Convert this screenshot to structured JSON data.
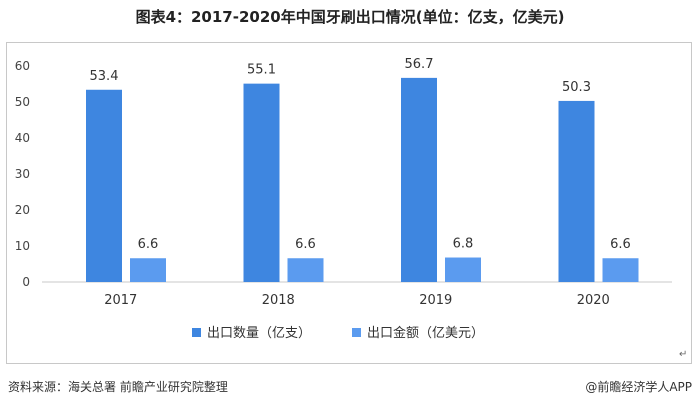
{
  "title": "图表4：2017-2020年中国牙刷出口情况(单位：亿支，亿美元)",
  "source": "资料来源：海关总署  前瞻产业研究院整理",
  "brand": "@前瞻经济学人APP",
  "return_mark": "↵",
  "chart_data": {
    "type": "bar",
    "title": "图表4：2017-2020年中国牙刷出口情况(单位：亿支，亿美元)",
    "categories": [
      "2017",
      "2018",
      "2019",
      "2020"
    ],
    "series": [
      {
        "name": "出口数量（亿支）",
        "values": [
          53.4,
          55.1,
          56.7,
          50.3
        ],
        "color": "#3e86e0"
      },
      {
        "name": "出口金额（亿美元）",
        "values": [
          6.6,
          6.6,
          6.8,
          6.6
        ],
        "color": "#5b9bef"
      }
    ],
    "yticks": [
      0,
      10,
      20,
      30,
      40,
      50,
      60
    ],
    "ylim": [
      0,
      60
    ],
    "grid": false,
    "legend": "bottom-center",
    "xlabel": "",
    "ylabel": ""
  }
}
